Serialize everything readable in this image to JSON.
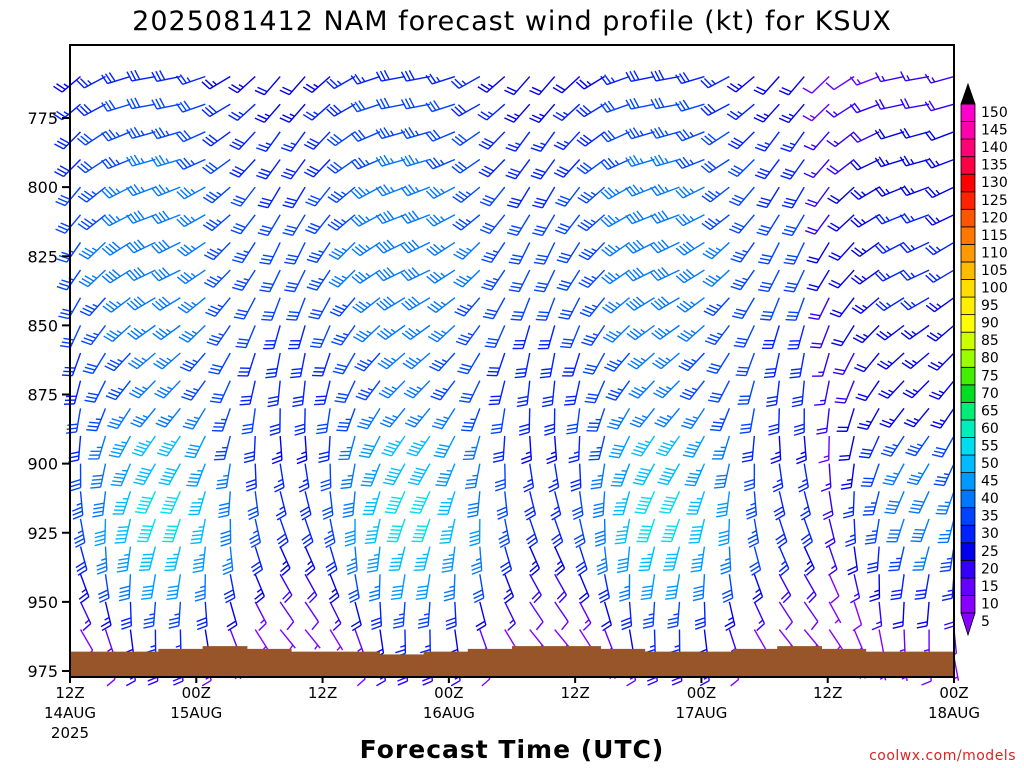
{
  "chart_data": {
    "type": "wind-barb-profile",
    "title": "2025081412 NAM forecast wind profile (kt) for KSUX",
    "xlabel": "Forecast Time (UTC)",
    "credit": "coolwx.com/models",
    "ylabel": "",
    "y_axis": {
      "range": [
        970,
        750
      ],
      "ticks": [
        "775",
        "800",
        "825",
        "850",
        "875",
        "900",
        "925",
        "950",
        "975"
      ]
    },
    "x_axis": {
      "range_hours": [
        0,
        84
      ],
      "ticks": [
        {
          "hour": 0,
          "lines": [
            "12Z",
            "14AUG",
            "2025"
          ]
        },
        {
          "hour": 12,
          "lines": [
            "00Z",
            "15AUG"
          ]
        },
        {
          "hour": 24,
          "lines": [
            "12Z"
          ]
        },
        {
          "hour": 36,
          "lines": [
            "00Z",
            "16AUG"
          ]
        },
        {
          "hour": 48,
          "lines": [
            "12Z"
          ]
        },
        {
          "hour": 60,
          "lines": [
            "00Z",
            "17AUG"
          ]
        },
        {
          "hour": 72,
          "lines": [
            "12Z"
          ]
        },
        {
          "hour": 84,
          "lines": [
            "00Z",
            "18AUG"
          ]
        }
      ]
    },
    "colorbar": {
      "units": "kt",
      "levels": [
        5,
        10,
        15,
        20,
        25,
        30,
        35,
        40,
        45,
        50,
        55,
        60,
        65,
        70,
        75,
        80,
        85,
        90,
        95,
        100,
        105,
        110,
        115,
        120,
        125,
        130,
        135,
        140,
        145,
        150
      ],
      "labels": [
        "5",
        "10",
        "15",
        "20",
        "25",
        "30",
        "35",
        "40",
        "45",
        "50",
        "55",
        "60",
        "65",
        "70",
        "75",
        "80",
        "85",
        "90",
        "95",
        "100",
        "105",
        "110",
        "115",
        "120",
        "125",
        "130",
        "135",
        "140",
        "145",
        "150"
      ],
      "colors": [
        "#8800ff",
        "#6600ff",
        "#3300ff",
        "#0000ee",
        "#0022ff",
        "#0044ff",
        "#0077ff",
        "#0099ff",
        "#00bbff",
        "#00ddee",
        "#00eebb",
        "#00ee77",
        "#00dd22",
        "#44ee00",
        "#99ff00",
        "#ccff00",
        "#ffff00",
        "#ffee00",
        "#ffdd00",
        "#ffbb00",
        "#ff9900",
        "#ff7700",
        "#ff5500",
        "#ff2200",
        "#ff0000",
        "#ff0044",
        "#ff0077",
        "#ff00aa",
        "#ff00cc",
        "#ff00ff"
      ]
    },
    "surface_color": "#99552a",
    "surface_pressure_hpa": [
      968,
      968,
      967,
      966,
      967,
      968,
      968,
      969,
      968,
      967,
      966,
      966,
      967,
      968,
      968,
      967,
      966,
      967,
      968,
      968
    ],
    "pressure_levels": [
      760,
      770,
      780,
      790,
      800,
      810,
      820,
      830,
      840,
      850,
      860,
      870,
      880,
      890,
      900,
      910,
      920,
      930,
      940,
      950,
      960,
      970
    ],
    "wind_kt": {
      "note_hours": [
        0,
        12,
        24,
        36,
        48,
        60,
        72,
        84
      ],
      "speed_profile_by_level": [
        25,
        28,
        30,
        32,
        33,
        34,
        35,
        35,
        34,
        33,
        32,
        32,
        33,
        35,
        37,
        39,
        40,
        36,
        30,
        22,
        14,
        8
      ],
      "direction_deg_by_level": [
        240,
        240,
        235,
        235,
        230,
        230,
        225,
        225,
        220,
        215,
        210,
        205,
        200,
        195,
        190,
        185,
        180,
        175,
        170,
        165,
        160,
        155
      ]
    }
  }
}
